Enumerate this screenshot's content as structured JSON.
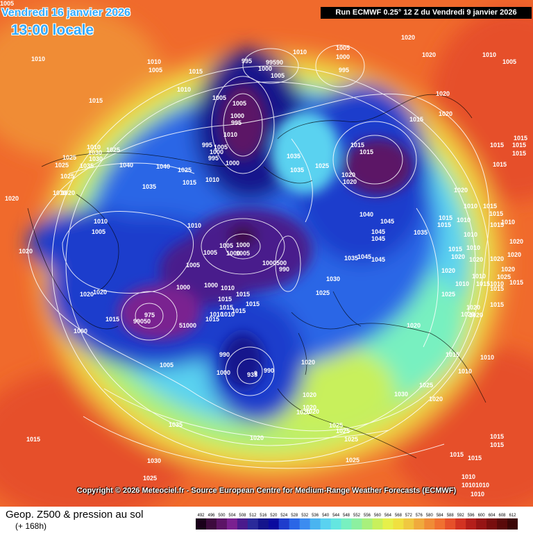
{
  "header": {
    "date_line": "Vendredi 16 janvier 2026",
    "time_line": "13:00 locale",
    "run_info": "Run ECMWF 0.25° 12 Z du Vendredi 9 janvier 2026"
  },
  "copyright": "Copyright © 2026 Meteociel.fr - Source European Centre for Medium-Range Weather Forecasts (ECMWF)",
  "legend": {
    "title": "Geop. Z500 & pression au sol",
    "subtitle": "(+ 168h)",
    "scale_values": [
      "492",
      "496",
      "500",
      "504",
      "508",
      "512",
      "516",
      "520",
      "524",
      "528",
      "532",
      "536",
      "540",
      "544",
      "548",
      "552",
      "556",
      "560",
      "564",
      "568",
      "572",
      "576",
      "580",
      "584",
      "588",
      "592",
      "596",
      "600",
      "604",
      "608",
      "612"
    ],
    "scale_colors": [
      "#1a001a",
      "#3d0a3d",
      "#5c1466",
      "#7a2090",
      "#4a1a8c",
      "#2a2a9a",
      "#14148c",
      "#0a0a9e",
      "#1e3ccc",
      "#2a66e6",
      "#3c8cf0",
      "#4ab4f0",
      "#5ad2f0",
      "#64e6e0",
      "#78f0c0",
      "#8cf0a0",
      "#a8f07c",
      "#c8f05c",
      "#e6f04a",
      "#f0e040",
      "#f0c840",
      "#f0aa3c",
      "#f08c36",
      "#f07030",
      "#e6502a",
      "#d23222",
      "#b41e1a",
      "#961414",
      "#780e0e",
      "#5a0a0a",
      "#3c0606"
    ]
  },
  "map": {
    "pressure_labels": [
      "1005",
      "1010",
      "1015",
      "1020",
      "1025",
      "1030",
      "1035",
      "1040",
      "1045",
      "995",
      "990",
      "1000",
      "975",
      "99050",
      "935",
      "1000500",
      "1020"
    ]
  }
}
